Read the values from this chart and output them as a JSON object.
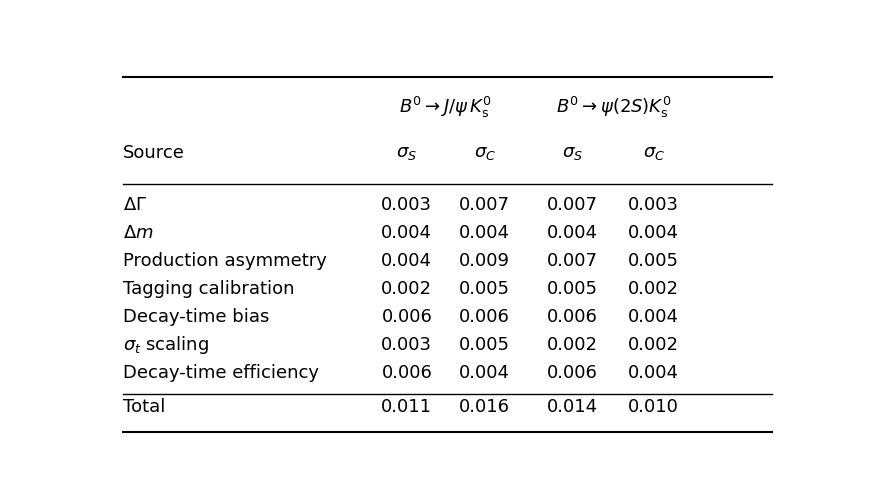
{
  "col_headers_top": [
    "$B^0 \\rightarrow J/\\psi\\, K^0_{\\mathrm{s}}$",
    "$B^0 \\rightarrow \\psi(2S)K^0_{\\mathrm{s}}$"
  ],
  "col_headers_sub": [
    "$\\sigma_S$",
    "$\\sigma_C$",
    "$\\sigma_S$",
    "$\\sigma_C$"
  ],
  "row_labels": [
    "$\\Delta\\Gamma$",
    "$\\Delta m$",
    "Production asymmetry",
    "Tagging calibration",
    "Decay-time bias",
    "$\\sigma_t$ scaling",
    "Decay-time efficiency"
  ],
  "data": [
    [
      0.003,
      0.007,
      0.007,
      0.003
    ],
    [
      0.004,
      0.004,
      0.004,
      0.004
    ],
    [
      0.004,
      0.009,
      0.007,
      0.005
    ],
    [
      0.002,
      0.005,
      0.005,
      0.002
    ],
    [
      0.006,
      0.006,
      0.006,
      0.004
    ],
    [
      0.003,
      0.005,
      0.002,
      0.002
    ],
    [
      0.006,
      0.004,
      0.006,
      0.004
    ]
  ],
  "total_row_label": "Total",
  "total_row": [
    0.011,
    0.016,
    0.014,
    0.01
  ],
  "source_label": "Source",
  "bg_color": "#ffffff",
  "text_color": "#000000",
  "font_size": 13,
  "header_font_size": 13
}
